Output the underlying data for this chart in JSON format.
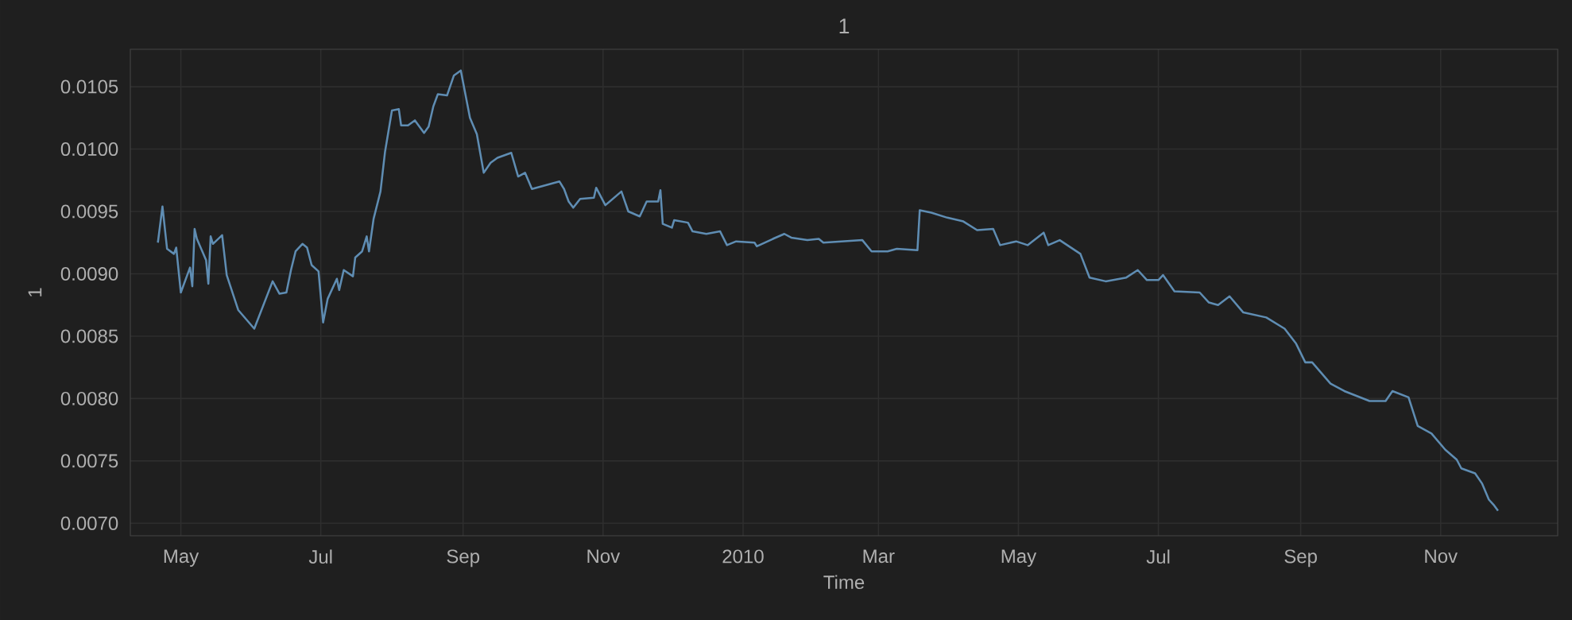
{
  "chart_data": {
    "type": "line",
    "title": "1",
    "xlabel": "Time",
    "ylabel": "1",
    "x": [
      "2009-04-21",
      "2009-04-23",
      "2009-04-25",
      "2009-04-28",
      "2009-04-29",
      "2009-05-01",
      "2009-05-05",
      "2009-05-06",
      "2009-05-07",
      "2009-05-08",
      "2009-05-12",
      "2009-05-13",
      "2009-05-14",
      "2009-05-15",
      "2009-05-19",
      "2009-05-21",
      "2009-05-26",
      "2009-06-02",
      "2009-06-10",
      "2009-06-13",
      "2009-06-16",
      "2009-06-18",
      "2009-06-20",
      "2009-06-23",
      "2009-06-25",
      "2009-06-27",
      "2009-06-30",
      "2009-07-02",
      "2009-07-04",
      "2009-07-08",
      "2009-07-09",
      "2009-07-11",
      "2009-07-15",
      "2009-07-16",
      "2009-07-19",
      "2009-07-21",
      "2009-07-22",
      "2009-07-24",
      "2009-07-27",
      "2009-07-29",
      "2009-08-01",
      "2009-08-04",
      "2009-08-05",
      "2009-08-08",
      "2009-08-11",
      "2009-08-15",
      "2009-08-17",
      "2009-08-19",
      "2009-08-21",
      "2009-08-25",
      "2009-08-28",
      "2009-08-31",
      "2009-09-04",
      "2009-09-07",
      "2009-09-10",
      "2009-09-13",
      "2009-09-16",
      "2009-09-22",
      "2009-09-25",
      "2009-09-28",
      "2009-10-01",
      "2009-10-13",
      "2009-10-15",
      "2009-10-17",
      "2009-10-19",
      "2009-10-22",
      "2009-10-28",
      "2009-10-29",
      "2009-11-02",
      "2009-11-09",
      "2009-11-12",
      "2009-11-17",
      "2009-11-20",
      "2009-11-25",
      "2009-11-26",
      "2009-11-27",
      "2009-12-01",
      "2009-12-02",
      "2009-12-08",
      "2009-12-10",
      "2009-12-16",
      "2009-12-22",
      "2009-12-25",
      "2009-12-29",
      "2010-01-06",
      "2010-01-07",
      "2010-01-14",
      "2010-01-19",
      "2010-01-22",
      "2010-01-29",
      "2010-02-03",
      "2010-02-05",
      "2010-02-22",
      "2010-02-26",
      "2010-03-05",
      "2010-03-09",
      "2010-03-18",
      "2010-03-19",
      "2010-03-24",
      "2010-03-31",
      "2010-04-07",
      "2010-04-13",
      "2010-04-20",
      "2010-04-23",
      "2010-04-30",
      "2010-05-05",
      "2010-05-12",
      "2010-05-14",
      "2010-05-19",
      "2010-05-28",
      "2010-06-01",
      "2010-06-08",
      "2010-06-17",
      "2010-06-22",
      "2010-06-26",
      "2010-07-01",
      "2010-07-03",
      "2010-07-08",
      "2010-07-19",
      "2010-07-23",
      "2010-07-27",
      "2010-08-01",
      "2010-08-07",
      "2010-08-17",
      "2010-08-25",
      "2010-08-30",
      "2010-09-03",
      "2010-09-06",
      "2010-09-14",
      "2010-09-20",
      "2010-10-01",
      "2010-10-08",
      "2010-10-11",
      "2010-10-18",
      "2010-10-22",
      "2010-10-28",
      "2010-11-03",
      "2010-11-08",
      "2010-11-10",
      "2010-11-16",
      "2010-11-19",
      "2010-11-22",
      "2010-11-24",
      "2010-11-26"
    ],
    "series": [
      {
        "color": "#5f8db3",
        "values": [
          0.00925,
          0.00954,
          0.0092,
          0.00916,
          0.00921,
          0.00885,
          0.00905,
          0.0089,
          0.00936,
          0.00928,
          0.00911,
          0.00892,
          0.0093,
          0.00924,
          0.00931,
          0.00899,
          0.00871,
          0.00856,
          0.00894,
          0.00884,
          0.00885,
          0.00903,
          0.00918,
          0.00924,
          0.00921,
          0.00907,
          0.00902,
          0.00861,
          0.0088,
          0.00896,
          0.00887,
          0.00903,
          0.00898,
          0.00913,
          0.00918,
          0.0093,
          0.00918,
          0.00944,
          0.00966,
          0.00998,
          0.01031,
          0.01032,
          0.01019,
          0.01019,
          0.01023,
          0.01013,
          0.01018,
          0.01034,
          0.01044,
          0.01043,
          0.01059,
          0.01063,
          0.01025,
          0.01012,
          0.00981,
          0.00989,
          0.00993,
          0.00997,
          0.00978,
          0.00981,
          0.00968,
          0.00974,
          0.00968,
          0.00958,
          0.00953,
          0.0096,
          0.00961,
          0.00969,
          0.00955,
          0.00966,
          0.0095,
          0.00946,
          0.00958,
          0.00958,
          0.00967,
          0.0094,
          0.00937,
          0.00943,
          0.00941,
          0.00934,
          0.00932,
          0.00934,
          0.00923,
          0.00926,
          0.00925,
          0.00922,
          0.00928,
          0.00932,
          0.00929,
          0.00927,
          0.00928,
          0.00925,
          0.00927,
          0.00918,
          0.00918,
          0.0092,
          0.00919,
          0.00951,
          0.00949,
          0.00945,
          0.00942,
          0.00935,
          0.00936,
          0.00923,
          0.00926,
          0.00923,
          0.00933,
          0.00923,
          0.00927,
          0.00916,
          0.00897,
          0.00894,
          0.00897,
          0.00903,
          0.00895,
          0.00895,
          0.00899,
          0.00886,
          0.00885,
          0.00877,
          0.00875,
          0.00882,
          0.00869,
          0.00865,
          0.00856,
          0.00844,
          0.00829,
          0.00829,
          0.00812,
          0.00806,
          0.00798,
          0.00798,
          0.00806,
          0.00801,
          0.00778,
          0.00772,
          0.00759,
          0.00751,
          0.00744,
          0.0074,
          0.00732,
          0.00719,
          0.00715,
          0.0071
        ]
      }
    ],
    "xlim": [
      "2009-04-09",
      "2010-12-22"
    ],
    "xticks": [
      {
        "value": "2009-05-01",
        "label": "May"
      },
      {
        "value": "2009-07-01",
        "label": "Jul"
      },
      {
        "value": "2009-09-01",
        "label": "Sep"
      },
      {
        "value": "2009-11-01",
        "label": "Nov"
      },
      {
        "value": "2010-01-01",
        "label": "2010"
      },
      {
        "value": "2010-03-01",
        "label": "Mar"
      },
      {
        "value": "2010-05-01",
        "label": "May"
      },
      {
        "value": "2010-07-01",
        "label": "Jul"
      },
      {
        "value": "2010-09-01",
        "label": "Sep"
      },
      {
        "value": "2010-11-01",
        "label": "Nov"
      }
    ],
    "ylim": [
      0.0069,
      0.0108
    ],
    "yticks": [
      {
        "value": 0.007,
        "label": "0.0070"
      },
      {
        "value": 0.0075,
        "label": "0.0075"
      },
      {
        "value": 0.008,
        "label": "0.0080"
      },
      {
        "value": 0.0085,
        "label": "0.0085"
      },
      {
        "value": 0.009,
        "label": "0.0090"
      },
      {
        "value": 0.0095,
        "label": "0.0095"
      },
      {
        "value": 0.01,
        "label": "0.0100"
      },
      {
        "value": 0.0105,
        "label": "0.0105"
      }
    ],
    "grid": true
  }
}
